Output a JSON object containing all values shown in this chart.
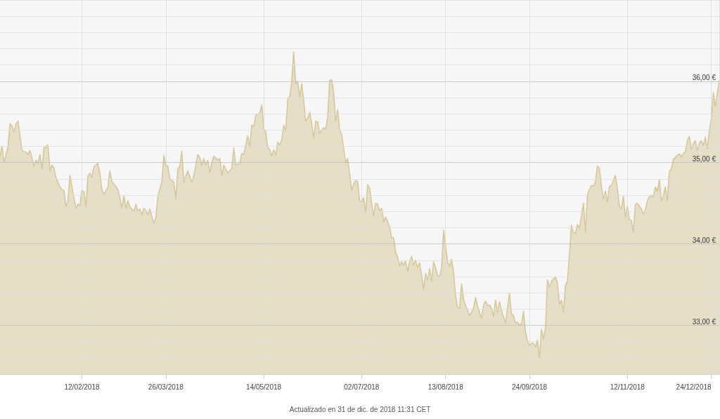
{
  "chart_data": {
    "type": "area",
    "x": [
      "2018-01-02",
      "2018-01-03",
      "2018-01-04",
      "2018-01-06",
      "2018-01-07",
      "2018-01-08",
      "2018-01-09",
      "2018-01-10",
      "2018-01-11",
      "2018-01-12",
      "2018-01-13",
      "2018-01-15",
      "2018-01-16",
      "2018-01-17",
      "2018-01-19",
      "2018-01-20",
      "2018-01-21",
      "2018-01-22",
      "2018-01-23",
      "2018-01-24",
      "2018-01-26",
      "2018-01-27",
      "2018-01-28",
      "2018-01-29",
      "2018-01-30",
      "2018-02-01",
      "2018-02-02",
      "2018-02-03",
      "2018-02-04",
      "2018-02-05",
      "2018-02-06",
      "2018-02-08",
      "2018-02-09",
      "2018-02-10",
      "2018-02-11",
      "2018-02-12",
      "2018-02-13",
      "2018-02-14",
      "2018-02-15",
      "2018-02-16",
      "2018-02-17",
      "2018-02-18",
      "2018-02-20",
      "2018-02-21",
      "2018-02-22",
      "2018-02-23",
      "2018-02-25",
      "2018-02-26",
      "2018-02-27",
      "2018-02-28",
      "2018-03-02",
      "2018-03-03",
      "2018-03-04",
      "2018-03-05",
      "2018-03-06",
      "2018-03-07",
      "2018-03-08",
      "2018-03-10",
      "2018-03-11",
      "2018-03-12",
      "2018-03-13",
      "2018-03-14",
      "2018-03-15",
      "2018-03-16",
      "2018-03-17",
      "2018-03-18",
      "2018-03-20",
      "2018-03-21",
      "2018-03-22",
      "2018-03-24",
      "2018-03-25",
      "2018-03-26",
      "2018-03-27",
      "2018-03-28",
      "2018-03-30",
      "2018-03-31",
      "2018-04-01",
      "2018-04-02",
      "2018-04-03",
      "2018-04-04",
      "2018-04-05",
      "2018-04-06",
      "2018-04-08",
      "2018-04-09",
      "2018-04-11",
      "2018-04-12",
      "2018-04-13",
      "2018-04-14",
      "2018-04-15",
      "2018-04-16",
      "2018-04-17",
      "2018-04-18",
      "2018-04-19",
      "2018-04-20",
      "2018-04-21",
      "2018-04-22",
      "2018-04-23",
      "2018-04-24",
      "2018-04-26",
      "2018-04-28",
      "2018-04-29",
      "2018-04-30",
      "2018-05-02",
      "2018-05-03",
      "2018-05-04",
      "2018-05-06",
      "2018-05-07",
      "2018-05-08",
      "2018-05-09",
      "2018-05-10",
      "2018-05-12",
      "2018-05-13",
      "2018-05-14",
      "2018-05-15",
      "2018-05-16",
      "2018-05-17",
      "2018-05-18",
      "2018-05-19",
      "2018-05-20",
      "2018-05-21",
      "2018-05-22",
      "2018-05-23",
      "2018-05-24",
      "2018-05-25",
      "2018-05-26",
      "2018-05-27",
      "2018-05-28",
      "2018-05-29",
      "2018-05-30",
      "2018-05-31",
      "2018-06-01",
      "2018-06-02",
      "2018-06-03",
      "2018-06-04",
      "2018-06-05",
      "2018-06-06",
      "2018-06-07",
      "2018-06-08",
      "2018-06-09",
      "2018-06-10",
      "2018-06-11",
      "2018-06-12",
      "2018-06-13",
      "2018-06-14",
      "2018-06-15",
      "2018-06-16",
      "2018-06-17",
      "2018-06-18",
      "2018-06-19",
      "2018-06-20",
      "2018-06-21",
      "2018-06-22",
      "2018-06-24",
      "2018-06-25",
      "2018-06-27",
      "2018-06-28",
      "2018-06-29",
      "2018-06-30",
      "2018-07-01",
      "2018-07-02",
      "2018-07-03",
      "2018-07-04",
      "2018-07-05",
      "2018-07-06",
      "2018-07-07",
      "2018-07-08",
      "2018-07-09",
      "2018-07-10",
      "2018-07-11",
      "2018-07-12",
      "2018-07-13",
      "2018-07-14",
      "2018-07-15",
      "2018-07-16",
      "2018-07-17",
      "2018-07-18",
      "2018-07-19",
      "2018-07-20",
      "2018-07-21",
      "2018-07-22",
      "2018-07-23",
      "2018-07-24",
      "2018-07-25",
      "2018-07-26",
      "2018-07-27",
      "2018-07-28",
      "2018-07-29",
      "2018-07-30",
      "2018-07-31",
      "2018-08-01",
      "2018-08-02",
      "2018-08-03",
      "2018-08-04",
      "2018-08-05",
      "2018-08-06",
      "2018-08-07",
      "2018-08-08",
      "2018-08-09",
      "2018-08-10",
      "2018-08-11",
      "2018-08-12",
      "2018-08-13",
      "2018-08-14",
      "2018-08-15",
      "2018-08-16",
      "2018-08-17",
      "2018-08-18",
      "2018-08-19",
      "2018-08-20",
      "2018-08-21",
      "2018-08-22",
      "2018-08-23",
      "2018-08-24",
      "2018-08-25",
      "2018-08-26",
      "2018-08-27",
      "2018-08-28",
      "2018-08-29",
      "2018-08-30",
      "2018-08-31",
      "2018-09-01",
      "2018-09-02",
      "2018-09-03",
      "2018-09-04",
      "2018-09-05",
      "2018-09-06",
      "2018-09-07",
      "2018-09-08",
      "2018-09-09",
      "2018-09-10",
      "2018-09-12",
      "2018-09-13",
      "2018-09-14",
      "2018-09-15",
      "2018-09-16",
      "2018-09-17",
      "2018-09-18",
      "2018-09-19",
      "2018-09-20",
      "2018-09-21",
      "2018-09-22",
      "2018-09-23",
      "2018-09-24",
      "2018-09-25",
      "2018-09-26",
      "2018-09-27",
      "2018-09-28",
      "2018-09-29",
      "2018-09-30",
      "2018-10-01",
      "2018-10-02",
      "2018-10-03",
      "2018-10-04",
      "2018-10-05",
      "2018-10-07",
      "2018-10-08",
      "2018-10-09",
      "2018-10-10",
      "2018-10-11",
      "2018-10-12",
      "2018-10-13",
      "2018-10-14",
      "2018-10-15",
      "2018-10-16",
      "2018-10-17",
      "2018-10-18",
      "2018-10-19",
      "2018-10-21",
      "2018-10-22",
      "2018-10-23",
      "2018-10-24",
      "2018-10-25",
      "2018-10-26",
      "2018-10-27",
      "2018-10-28",
      "2018-10-29",
      "2018-10-30",
      "2018-10-31",
      "2018-11-01",
      "2018-11-02",
      "2018-11-03",
      "2018-11-04",
      "2018-11-05",
      "2018-11-06",
      "2018-11-07",
      "2018-11-08",
      "2018-11-09",
      "2018-11-10",
      "2018-11-11",
      "2018-11-12",
      "2018-11-13",
      "2018-11-14",
      "2018-11-15",
      "2018-11-16",
      "2018-11-17",
      "2018-11-19",
      "2018-11-20",
      "2018-11-21",
      "2018-11-22",
      "2018-11-23",
      "2018-11-24",
      "2018-11-25",
      "2018-11-26",
      "2018-11-27",
      "2018-11-28",
      "2018-11-29",
      "2018-11-30",
      "2018-12-01",
      "2018-12-02",
      "2018-12-03",
      "2018-12-04",
      "2018-12-05",
      "2018-12-07",
      "2018-12-08",
      "2018-12-09",
      "2018-12-10",
      "2018-12-11",
      "2018-12-12",
      "2018-12-13",
      "2018-12-14",
      "2018-12-15",
      "2018-12-16",
      "2018-12-17",
      "2018-12-18",
      "2018-12-19",
      "2018-12-20",
      "2018-12-21",
      "2018-12-22",
      "2018-12-23",
      "2018-12-24",
      "2018-12-25",
      "2018-12-26",
      "2018-12-27",
      "2018-12-28"
    ],
    "series": [
      {
        "color": "#d6c596",
        "values": [
          35.08,
          35.2,
          35.0,
          35.19,
          35.48,
          35.45,
          35.38,
          35.48,
          35.51,
          35.33,
          35.15,
          35.13,
          35.1,
          35.15,
          34.96,
          35.03,
          34.99,
          35.1,
          34.92,
          35.18,
          35.22,
          34.9,
          34.97,
          34.93,
          34.82,
          34.7,
          34.67,
          34.66,
          34.46,
          34.53,
          34.84,
          34.57,
          34.44,
          34.49,
          34.47,
          34.66,
          34.64,
          34.46,
          34.84,
          34.87,
          34.82,
          34.95,
          34.99,
          34.87,
          34.67,
          34.61,
          34.7,
          34.9,
          34.77,
          34.74,
          34.67,
          34.57,
          34.44,
          34.59,
          34.44,
          34.53,
          34.46,
          34.4,
          34.49,
          34.4,
          34.43,
          34.36,
          34.44,
          34.41,
          34.36,
          34.43,
          34.25,
          34.33,
          34.59,
          34.76,
          35.09,
          34.96,
          34.96,
          34.8,
          34.76,
          34.56,
          34.92,
          34.96,
          35.14,
          34.76,
          34.84,
          34.9,
          34.76,
          34.84,
          35.1,
          35.06,
          34.97,
          35.05,
          34.97,
          35.03,
          34.88,
          35.0,
          35.08,
          35.06,
          35.03,
          35.05,
          34.84,
          34.97,
          34.87,
          34.93,
          35.18,
          34.97,
          34.99,
          35.11,
          35.1,
          35.33,
          35.19,
          35.46,
          35.45,
          35.58,
          35.61,
          35.71,
          35.42,
          35.38,
          35.18,
          35.16,
          35.08,
          35.16,
          35.09,
          35.25,
          35.22,
          35.28,
          35.46,
          35.39,
          35.78,
          35.81,
          35.99,
          36.36,
          35.97,
          36.0,
          35.81,
          35.97,
          35.76,
          35.51,
          35.55,
          35.62,
          35.48,
          35.3,
          35.51,
          35.5,
          35.36,
          35.4,
          35.43,
          35.41,
          35.56,
          36.01,
          36.02,
          35.86,
          35.51,
          35.65,
          35.39,
          35.35,
          35.0,
          35.05,
          34.66,
          34.74,
          34.78,
          34.77,
          34.53,
          34.52,
          34.57,
          34.38,
          34.73,
          34.69,
          34.5,
          34.34,
          34.5,
          34.49,
          34.4,
          34.44,
          34.27,
          34.33,
          34.28,
          34.21,
          34.07,
          34.08,
          33.9,
          33.84,
          33.73,
          33.78,
          33.74,
          33.79,
          33.66,
          33.78,
          33.85,
          33.74,
          33.8,
          33.71,
          33.77,
          33.62,
          33.44,
          33.64,
          33.56,
          33.7,
          33.54,
          33.78,
          33.71,
          33.61,
          33.6,
          33.7,
          34.17,
          33.98,
          33.78,
          33.73,
          33.81,
          33.65,
          33.36,
          33.22,
          33.21,
          33.51,
          33.32,
          33.24,
          33.19,
          33.12,
          33.16,
          33.21,
          33.34,
          33.24,
          33.16,
          33.09,
          33.25,
          33.3,
          33.24,
          33.25,
          33.21,
          33.11,
          33.31,
          33.16,
          33.29,
          33.18,
          33.03,
          33.21,
          33.39,
          33.14,
          33.12,
          33.03,
          33.04,
          33.0,
          33.02,
          33.17,
          32.92,
          32.8,
          32.75,
          32.78,
          32.78,
          32.73,
          32.82,
          32.6,
          32.95,
          32.83,
          32.96,
          33.56,
          33.47,
          33.54,
          33.6,
          33.52,
          33.26,
          33.31,
          33.16,
          33.49,
          33.54,
          33.87,
          34.23,
          34.14,
          34.13,
          34.24,
          34.19,
          34.5,
          34.14,
          34.6,
          34.67,
          34.72,
          34.71,
          34.76,
          34.96,
          34.93,
          34.71,
          34.55,
          34.65,
          34.51,
          34.71,
          34.72,
          34.78,
          34.84,
          34.68,
          34.46,
          34.43,
          34.59,
          34.33,
          34.47,
          34.3,
          34.29,
          34.14,
          34.49,
          34.5,
          34.43,
          34.37,
          34.42,
          34.53,
          34.58,
          34.6,
          34.58,
          34.7,
          34.65,
          34.79,
          34.53,
          34.59,
          34.7,
          34.53,
          34.89,
          34.92,
          35.04,
          35.09,
          35.11,
          35.07,
          35.11,
          35.13,
          35.27,
          35.32,
          35.17,
          35.23,
          35.27,
          35.15,
          35.24,
          35.27,
          35.21,
          35.31,
          35.17,
          35.39,
          35.54,
          35.86,
          35.69,
          35.85,
          36.01
        ]
      }
    ],
    "xlim": [
      "2018-01-02",
      "2018-12-28"
    ],
    "xticks": [
      {
        "value": "2018-02-12",
        "label": "12/02/2018"
      },
      {
        "value": "2018-03-26",
        "label": "26/03/2018"
      },
      {
        "value": "2018-05-14",
        "label": "14/05/2018"
      },
      {
        "value": "2018-07-02",
        "label": "02/07/2018"
      },
      {
        "value": "2018-08-13",
        "label": "13/08/2018"
      },
      {
        "value": "2018-09-24",
        "label": "24/09/2018"
      },
      {
        "value": "2018-11-12",
        "label": "12/11/2018"
      },
      {
        "value": "2018-12-24",
        "label": "24/12/2018"
      }
    ],
    "ylim": [
      32.4,
      37
    ],
    "yticks": [
      {
        "value": 32.4,
        "label": null
      },
      {
        "value": 32.6,
        "label": null
      },
      {
        "value": 32.8,
        "label": null
      },
      {
        "value": 33,
        "label": "33,00 €"
      },
      {
        "value": 33.2,
        "label": null
      },
      {
        "value": 33.4,
        "label": null
      },
      {
        "value": 33.6,
        "label": null
      },
      {
        "value": 33.8,
        "label": null
      },
      {
        "value": 34,
        "label": "34,00 €"
      },
      {
        "value": 34.2,
        "label": null
      },
      {
        "value": 34.4,
        "label": null
      },
      {
        "value": 34.6,
        "label": null
      },
      {
        "value": 34.8,
        "label": null
      },
      {
        "value": 35,
        "label": "35,00 €"
      },
      {
        "value": 35.2,
        "label": null
      },
      {
        "value": 35.4,
        "label": null
      },
      {
        "value": 35.6,
        "label": null
      },
      {
        "value": 35.8,
        "label": null
      },
      {
        "value": 36,
        "label": "36,00 €"
      },
      {
        "value": 36.2,
        "label": null
      },
      {
        "value": 36.4,
        "label": null
      },
      {
        "value": 36.6,
        "label": null
      },
      {
        "value": 36.8,
        "label": null
      },
      {
        "value": 37,
        "label": null
      }
    ],
    "grid": true,
    "annotations": [
      "Actualizado en 31 de dic. de 2018 11:31 CET"
    ]
  }
}
